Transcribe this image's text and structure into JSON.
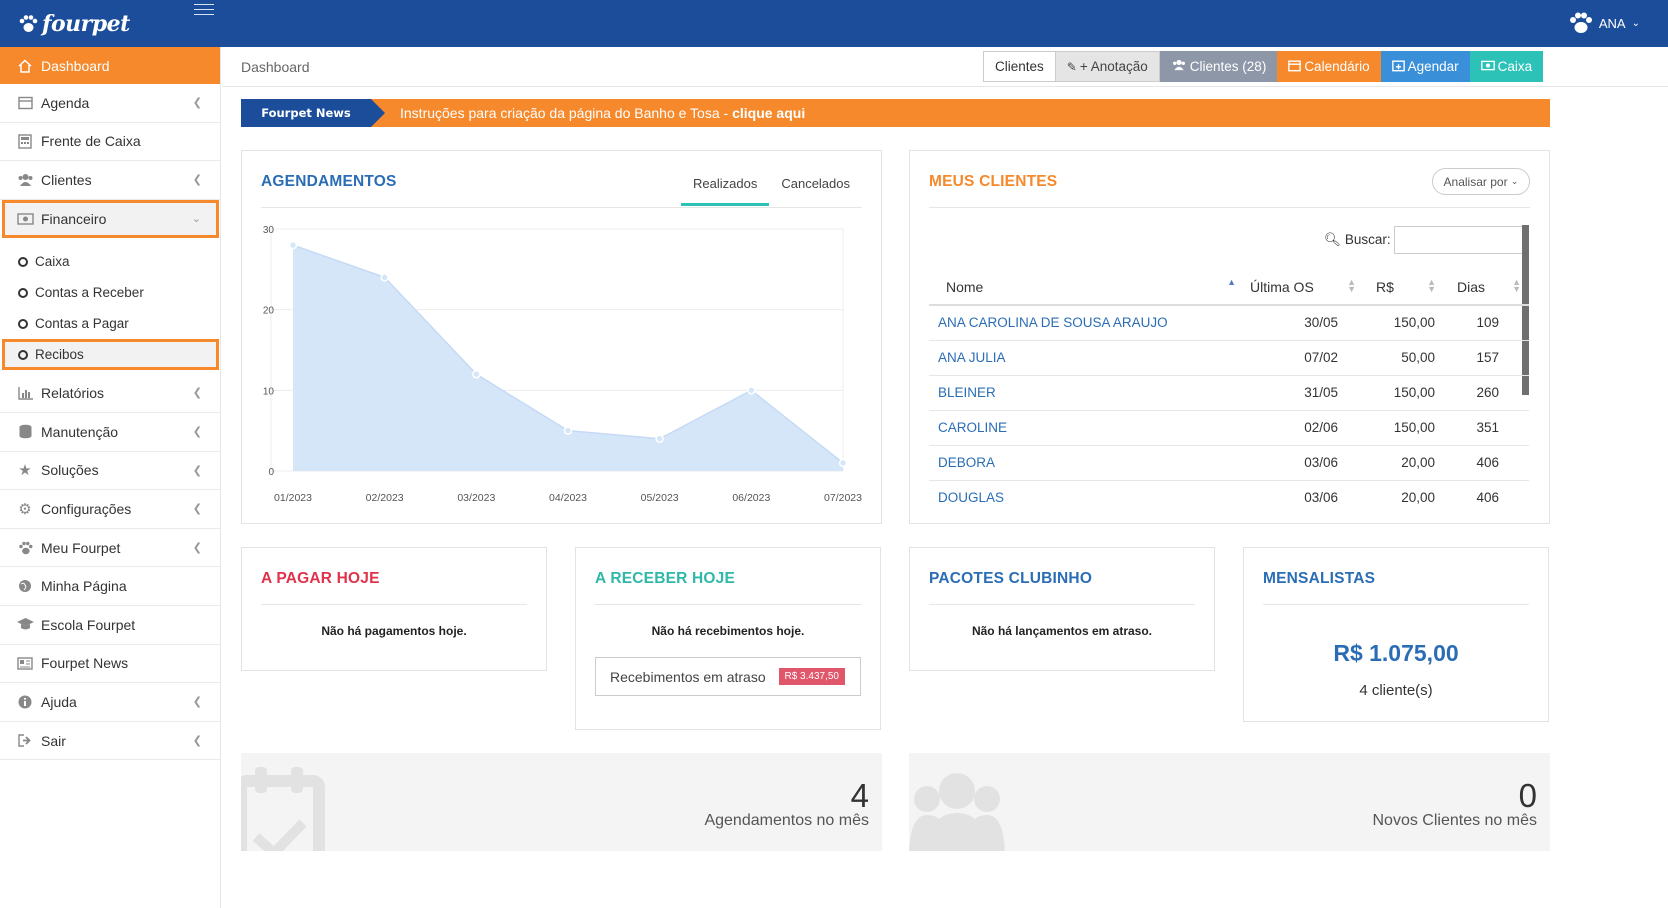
{
  "topbar": {
    "logo_text": "fourpet",
    "user_name": "ANA"
  },
  "sidebar": {
    "items": [
      {
        "label": "Dashboard",
        "icon": "home-icon"
      },
      {
        "label": "Agenda",
        "icon": "calendar-icon"
      },
      {
        "label": "Frente de Caixa",
        "icon": "calculator-icon"
      },
      {
        "label": "Clientes",
        "icon": "users-icon"
      },
      {
        "label": "Financeiro",
        "icon": "money-icon"
      },
      {
        "label": "Relatórios",
        "icon": "bar-chart-icon"
      },
      {
        "label": "Manutenção",
        "icon": "database-icon"
      },
      {
        "label": "Soluções",
        "icon": "star-icon"
      },
      {
        "label": "Configurações",
        "icon": "cogs-icon"
      },
      {
        "label": "Meu Fourpet",
        "icon": "paw-icon"
      },
      {
        "label": "Minha Página",
        "icon": "globe-icon"
      },
      {
        "label": "Escola Fourpet",
        "icon": "graduation-cap-icon"
      },
      {
        "label": "Fourpet News",
        "icon": "newspaper-icon"
      },
      {
        "label": "Ajuda",
        "icon": "info-icon"
      },
      {
        "label": "Sair",
        "icon": "sign-out-icon"
      }
    ],
    "financeiro_sub": [
      "Caixa",
      "Contas a Receber",
      "Contas a Pagar",
      "Recibos"
    ]
  },
  "header": {
    "breadcrumb": "Dashboard",
    "buttons": [
      "Clientes",
      "+ Anotação",
      "Clientes (28)",
      "Calendário",
      "Agendar",
      "Caixa"
    ]
  },
  "news": {
    "tag": "Fourpet News",
    "text": "Instruções para criação da página do Banho e Tosa - ",
    "link": "clique aqui"
  },
  "agendamentos": {
    "title": "AGENDAMENTOS",
    "tabs": [
      "Realizados",
      "Cancelados"
    ]
  },
  "chart_data": {
    "type": "area",
    "title": "AGENDAMENTOS",
    "x": [
      "01/2023",
      "02/2023",
      "03/2023",
      "04/2023",
      "05/2023",
      "06/2023",
      "07/2023"
    ],
    "series": [
      {
        "values": [
          28,
          24,
          12,
          5,
          4,
          10,
          1
        ]
      }
    ],
    "yticks": [
      0,
      10,
      20,
      30
    ],
    "ylim": [
      0,
      30
    ],
    "grid": true,
    "fill_color": "#d6e6f9",
    "line_color": "#c5daf5",
    "point_color": "#d6e6f9"
  },
  "clientes": {
    "title": "MEUS CLIENTES",
    "analisar": "Analisar por",
    "buscar": "Buscar:",
    "columns": [
      "Nome",
      "Última OS",
      "R$",
      "Dias"
    ],
    "rows": [
      [
        "ANA CAROLINA DE SOUSA ARAUJO",
        "30/05",
        "150,00",
        "109"
      ],
      [
        "ANA JULIA",
        "07/02",
        "50,00",
        "157"
      ],
      [
        "BLEINER",
        "31/05",
        "150,00",
        "260"
      ],
      [
        "CAROLINE",
        "02/06",
        "150,00",
        "351"
      ],
      [
        "DEBORA",
        "03/06",
        "20,00",
        "406"
      ],
      [
        "DOUGLAS",
        "03/06",
        "20,00",
        "406"
      ]
    ]
  },
  "pagar": {
    "title": "A PAGAR HOJE",
    "msg": "Não há pagamentos hoje.",
    "color": "#e0334b"
  },
  "receber": {
    "title": "A RECEBER HOJE",
    "msg": "Não há recebimentos hoje.",
    "atraso_label": "Recebimentos em atraso",
    "atraso_value": "R$ 3.437,50",
    "color": "#2fb8a8"
  },
  "pacotes": {
    "title": "PACOTES CLUBINHO",
    "msg": "Não há lançamentos em atraso.",
    "color": "#2a6db5"
  },
  "mensalistas": {
    "title": "MENSALISTAS",
    "value": "R$ 1.075,00",
    "count": "4 cliente(s)",
    "color": "#2a6db5"
  },
  "stats": [
    {
      "number": "4",
      "label": "Agendamentos no mês",
      "icon": "calendar-check-icon"
    },
    {
      "number": "0",
      "label": "Novos Clientes no mês",
      "icon": "users-icon"
    }
  ],
  "colors": {
    "brand_blue": "#1b4d9b",
    "accent_orange": "#f5892c",
    "link_blue": "#2a6db5"
  }
}
